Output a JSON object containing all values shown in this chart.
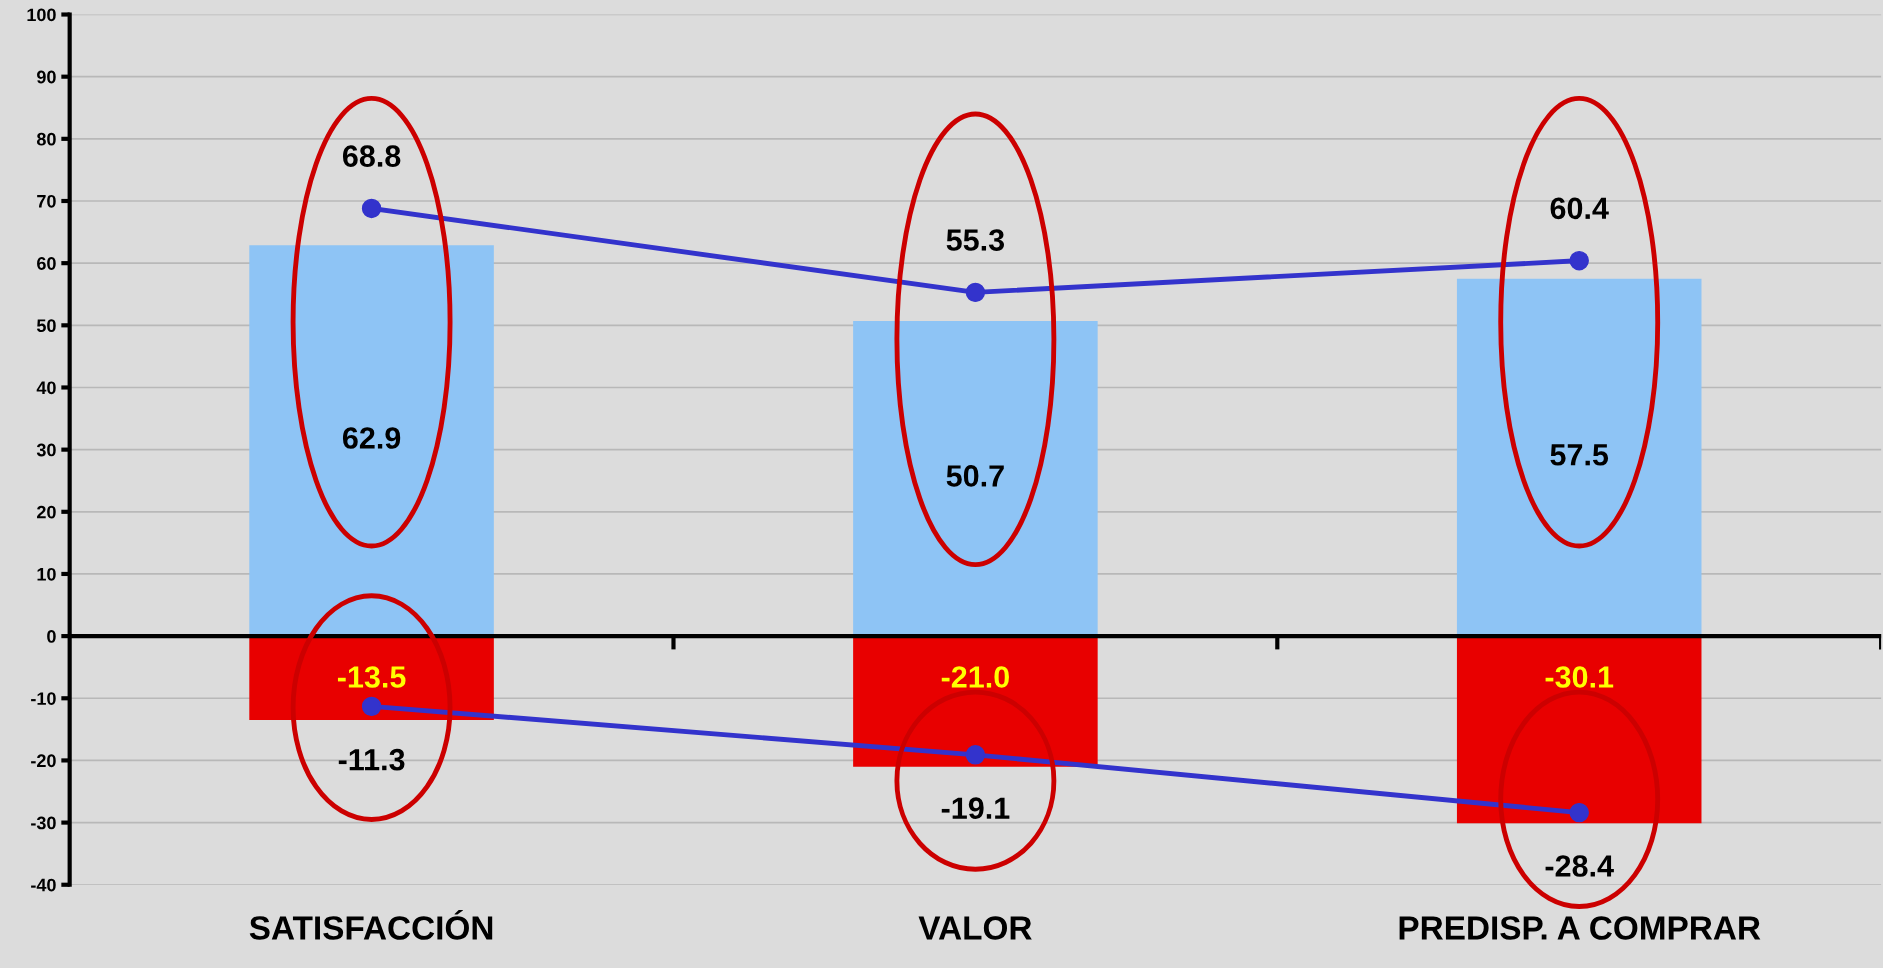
{
  "chart_data": {
    "type": "bar",
    "categories": [
      "SATISFACCIÓN",
      "VALOR",
      "PREDISP. A COMPRAR"
    ],
    "stacked": true,
    "grid": "y",
    "ylim": [
      -40,
      100
    ],
    "yticks": [
      -40,
      -30,
      -20,
      -10,
      0,
      10,
      20,
      30,
      40,
      50,
      60,
      70,
      80,
      90,
      100
    ],
    "series": [
      {
        "color": "#8ec4f5",
        "values": [
          62.9,
          50.7,
          57.5
        ],
        "value_labels": [
          "62.9",
          "50.7",
          "57.5"
        ]
      },
      {
        "color": "#e80000",
        "values": [
          -13.5,
          -21.0,
          -30.1
        ],
        "value_labels": [
          "-13.5",
          "-21.0",
          "-30.1"
        ]
      },
      {
        "type": "line",
        "color": "#3333cc",
        "marker": "circle",
        "values": [
          68.8,
          55.3,
          60.4
        ],
        "value_labels": [
          "68.8",
          "55.3",
          "60.4"
        ]
      },
      {
        "type": "line",
        "color": "#3333cc",
        "marker": "circle",
        "values": [
          -11.3,
          -19.1,
          -28.4
        ],
        "value_labels": [
          "-11.3",
          "-19.1",
          "-28.4"
        ]
      }
    ]
  }
}
